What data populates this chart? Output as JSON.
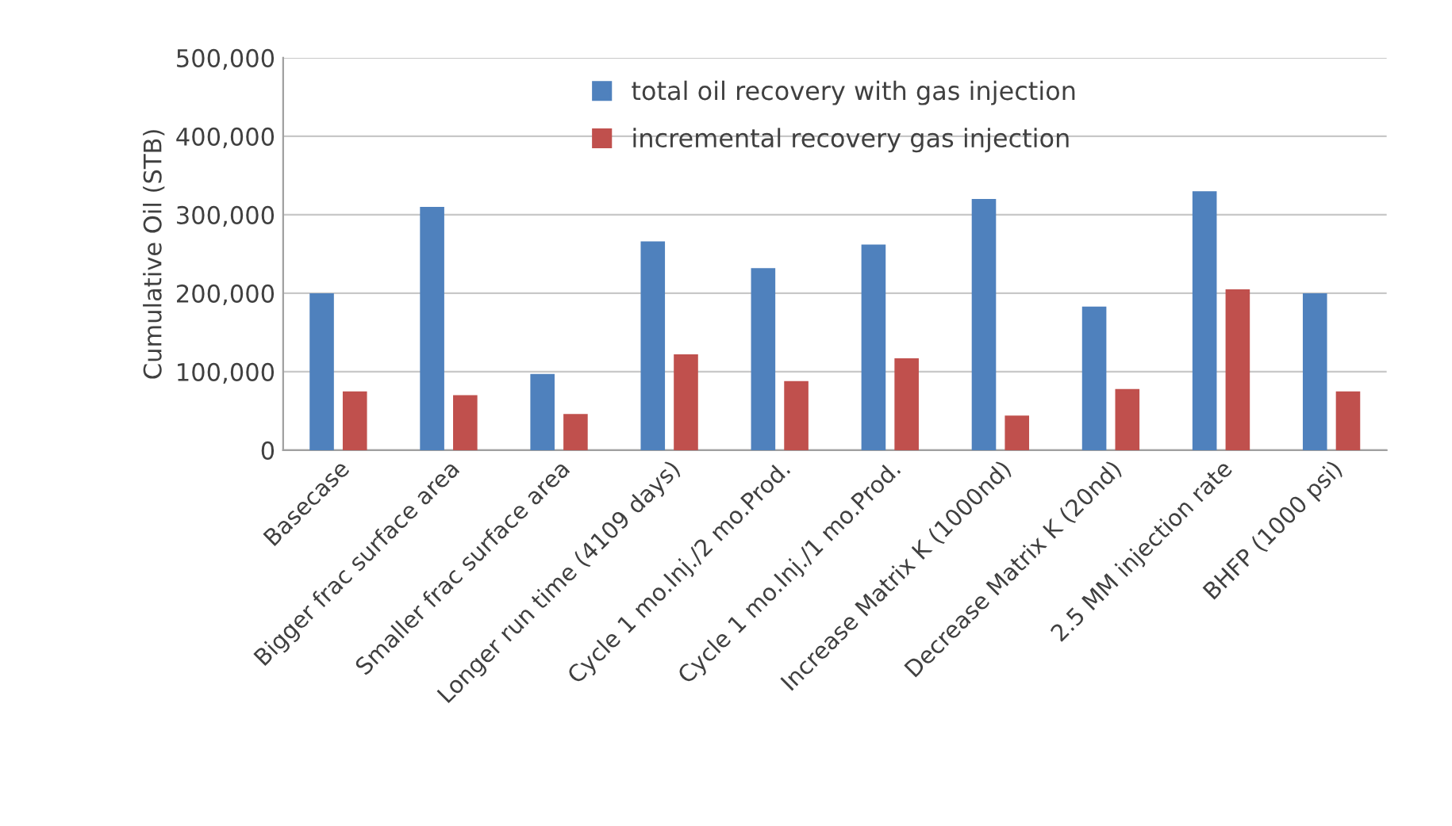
{
  "chart_data": {
    "type": "bar",
    "ylabel": "Cumulative Oil (STB)",
    "categories": [
      "Basecase",
      "Bigger frac surface area",
      "Smaller frac surface area",
      "Longer run time (4109 days)",
      "Cycle 1 mo.Inj./2 mo.Prod.",
      "Cycle 1 mo.Inj./1 mo.Prod.",
      "Increase Matrix K (1000nd)",
      "Decrease Matrix K (20nd)",
      "2.5 MM injection rate",
      "BHFP (1000 psi)"
    ],
    "series": [
      {
        "name": "total oil recovery with gas injection",
        "color": "#4f81bd",
        "values": [
          200000,
          310000,
          97000,
          266000,
          232000,
          262000,
          320000,
          183000,
          330000,
          200000
        ]
      },
      {
        "name": "incremental recovery gas injection",
        "color": "#c0504d",
        "values": [
          75000,
          70000,
          46000,
          122000,
          88000,
          117000,
          44000,
          78000,
          205000,
          75000
        ]
      }
    ],
    "ylim": [
      0,
      500000
    ],
    "yticks": [
      {
        "value": 0,
        "label": "0"
      },
      {
        "value": 100000,
        "label": "100,000"
      },
      {
        "value": 200000,
        "label": "200,000"
      },
      {
        "value": 300000,
        "label": "300,000"
      },
      {
        "value": 400000,
        "label": "400,000"
      },
      {
        "value": 500000,
        "label": "500,000"
      }
    ],
    "grid": "y",
    "legend": "top"
  }
}
